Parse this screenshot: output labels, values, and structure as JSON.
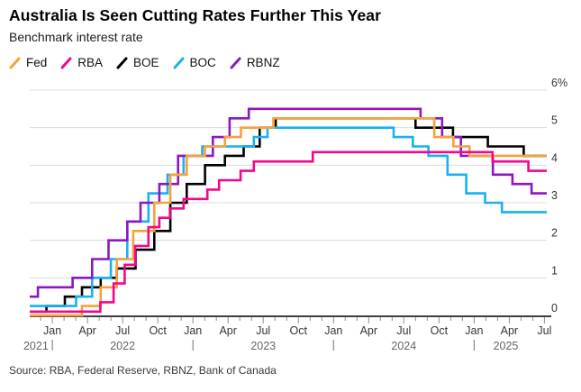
{
  "header": {
    "title": "Australia Is Seen Cutting Rates Further This Year",
    "subtitle": "Benchmark interest rate"
  },
  "legend": {
    "items": [
      {
        "label": "Fed",
        "color": "#f7a13b"
      },
      {
        "label": "RBA",
        "color": "#f2068d"
      },
      {
        "label": "BOE",
        "color": "#000000"
      },
      {
        "label": "BOC",
        "color": "#18b1f2"
      },
      {
        "label": "RBNZ",
        "color": "#8d17c0"
      }
    ]
  },
  "source": {
    "text": "Source: RBA, Federal Reserve, RBNZ, Bank of Canada"
  },
  "chart_data": {
    "type": "line",
    "step": true,
    "unit": "percent",
    "ylim": [
      0,
      6
    ],
    "grid": true,
    "legend_position": "top-left",
    "yticks": [
      {
        "value": 0,
        "label": "0"
      },
      {
        "value": 1,
        "label": "1"
      },
      {
        "value": 2,
        "label": "2"
      },
      {
        "value": 3,
        "label": "3"
      },
      {
        "value": 4,
        "label": "4"
      },
      {
        "value": 5,
        "label": "5"
      },
      {
        "value": 6,
        "label": "6%"
      }
    ],
    "x_unit": "months_since_jan_2021",
    "x_domain_months_since_jan2021": [
      10.07,
      54.2
    ],
    "x_ticks": [
      {
        "m": 12,
        "label": "Jan"
      },
      {
        "m": 15,
        "label": "Apr"
      },
      {
        "m": 18,
        "label": "Jul"
      },
      {
        "m": 21,
        "label": "Oct"
      },
      {
        "m": 24,
        "label": "Jan"
      },
      {
        "m": 27,
        "label": "Apr"
      },
      {
        "m": 30,
        "label": "Jul"
      },
      {
        "m": 33,
        "label": "Oct"
      },
      {
        "m": 36,
        "label": "Jan"
      },
      {
        "m": 39,
        "label": "Apr"
      },
      {
        "m": 42,
        "label": "Jul"
      },
      {
        "m": 45,
        "label": "Oct"
      },
      {
        "m": 48,
        "label": "Jan"
      },
      {
        "m": 51,
        "label": "Apr"
      },
      {
        "m": 54,
        "label": "Jul"
      }
    ],
    "year_separators": [
      12,
      24,
      36,
      48
    ],
    "year_labels": [
      {
        "label": "2021",
        "m": 10.6
      },
      {
        "label": "2022",
        "m": 18
      },
      {
        "label": "2023",
        "m": 30
      },
      {
        "label": "2024",
        "m": 42
      },
      {
        "label": "2025",
        "m": 50.7
      }
    ],
    "draw_order": [
      "BOE",
      "BOC",
      "RBNZ",
      "Fed",
      "RBA"
    ],
    "series": [
      {
        "name": "Fed",
        "color": "#f7a13b",
        "points": [
          [
            10.07,
            0
          ],
          [
            14.53,
            0.25
          ],
          [
            16.13,
            0.75
          ],
          [
            17.5,
            1.5
          ],
          [
            18.9,
            2.25
          ],
          [
            20.7,
            3.0
          ],
          [
            22.07,
            3.75
          ],
          [
            23.47,
            4.25
          ],
          [
            25.03,
            4.5
          ],
          [
            26.73,
            4.75
          ],
          [
            28.1,
            5.0
          ],
          [
            30.87,
            5.25
          ],
          [
            44.6,
            4.75
          ],
          [
            46.23,
            4.5
          ],
          [
            47.6,
            4.25
          ]
        ]
      },
      {
        "name": "RBA",
        "color": "#f2068d",
        "points": [
          [
            10.07,
            0.1
          ],
          [
            16.1,
            0.35
          ],
          [
            17.23,
            0.85
          ],
          [
            18.17,
            1.35
          ],
          [
            19.07,
            1.85
          ],
          [
            20.2,
            2.35
          ],
          [
            21.13,
            2.6
          ],
          [
            22.03,
            2.85
          ],
          [
            23.2,
            3.1
          ],
          [
            25.23,
            3.35
          ],
          [
            26.23,
            3.6
          ],
          [
            28.07,
            3.85
          ],
          [
            29.2,
            4.1
          ],
          [
            34.23,
            4.35
          ],
          [
            49.57,
            4.1
          ],
          [
            52.63,
            3.85
          ]
        ]
      },
      {
        "name": "BOE",
        "color": "#000000",
        "points": [
          [
            10.07,
            0.1
          ],
          [
            11.5,
            0.25
          ],
          [
            13.07,
            0.5
          ],
          [
            14.53,
            0.75
          ],
          [
            16.13,
            1.0
          ],
          [
            17.5,
            1.25
          ],
          [
            19.1,
            1.75
          ],
          [
            20.7,
            2.25
          ],
          [
            22.07,
            3.0
          ],
          [
            23.47,
            3.5
          ],
          [
            25.03,
            4.0
          ],
          [
            26.73,
            4.25
          ],
          [
            28.33,
            4.5
          ],
          [
            29.7,
            5.0
          ],
          [
            31.07,
            5.25
          ],
          [
            43.0,
            5.0
          ],
          [
            46.2,
            4.75
          ],
          [
            49.17,
            4.5
          ],
          [
            52.23,
            4.25
          ]
        ]
      },
      {
        "name": "BOC",
        "color": "#18b1f2",
        "points": [
          [
            10.07,
            0.25
          ],
          [
            14.03,
            0.5
          ],
          [
            15.4,
            1.0
          ],
          [
            17.0,
            1.5
          ],
          [
            18.4,
            2.5
          ],
          [
            20.2,
            3.25
          ],
          [
            21.83,
            3.75
          ],
          [
            23.2,
            4.25
          ],
          [
            24.8,
            4.5
          ],
          [
            29.2,
            4.75
          ],
          [
            30.37,
            5.0
          ],
          [
            41.13,
            4.75
          ],
          [
            42.77,
            4.5
          ],
          [
            44.1,
            4.25
          ],
          [
            45.73,
            3.75
          ],
          [
            47.33,
            3.25
          ],
          [
            48.93,
            3.0
          ],
          [
            50.37,
            2.75
          ]
        ]
      },
      {
        "name": "RBNZ",
        "color": "#8d17c0",
        "points": [
          [
            10.07,
            0.5
          ],
          [
            10.77,
            0.75
          ],
          [
            13.73,
            1.0
          ],
          [
            15.4,
            1.5
          ],
          [
            16.8,
            2.0
          ],
          [
            18.4,
            2.5
          ],
          [
            19.53,
            3.0
          ],
          [
            21.13,
            3.5
          ],
          [
            22.73,
            4.25
          ],
          [
            25.7,
            4.75
          ],
          [
            27.13,
            5.25
          ],
          [
            28.77,
            5.5
          ],
          [
            43.43,
            5.25
          ],
          [
            45.27,
            4.75
          ],
          [
            46.87,
            4.25
          ],
          [
            49.6,
            3.75
          ],
          [
            51.27,
            3.5
          ],
          [
            52.9,
            3.25
          ]
        ]
      }
    ]
  }
}
